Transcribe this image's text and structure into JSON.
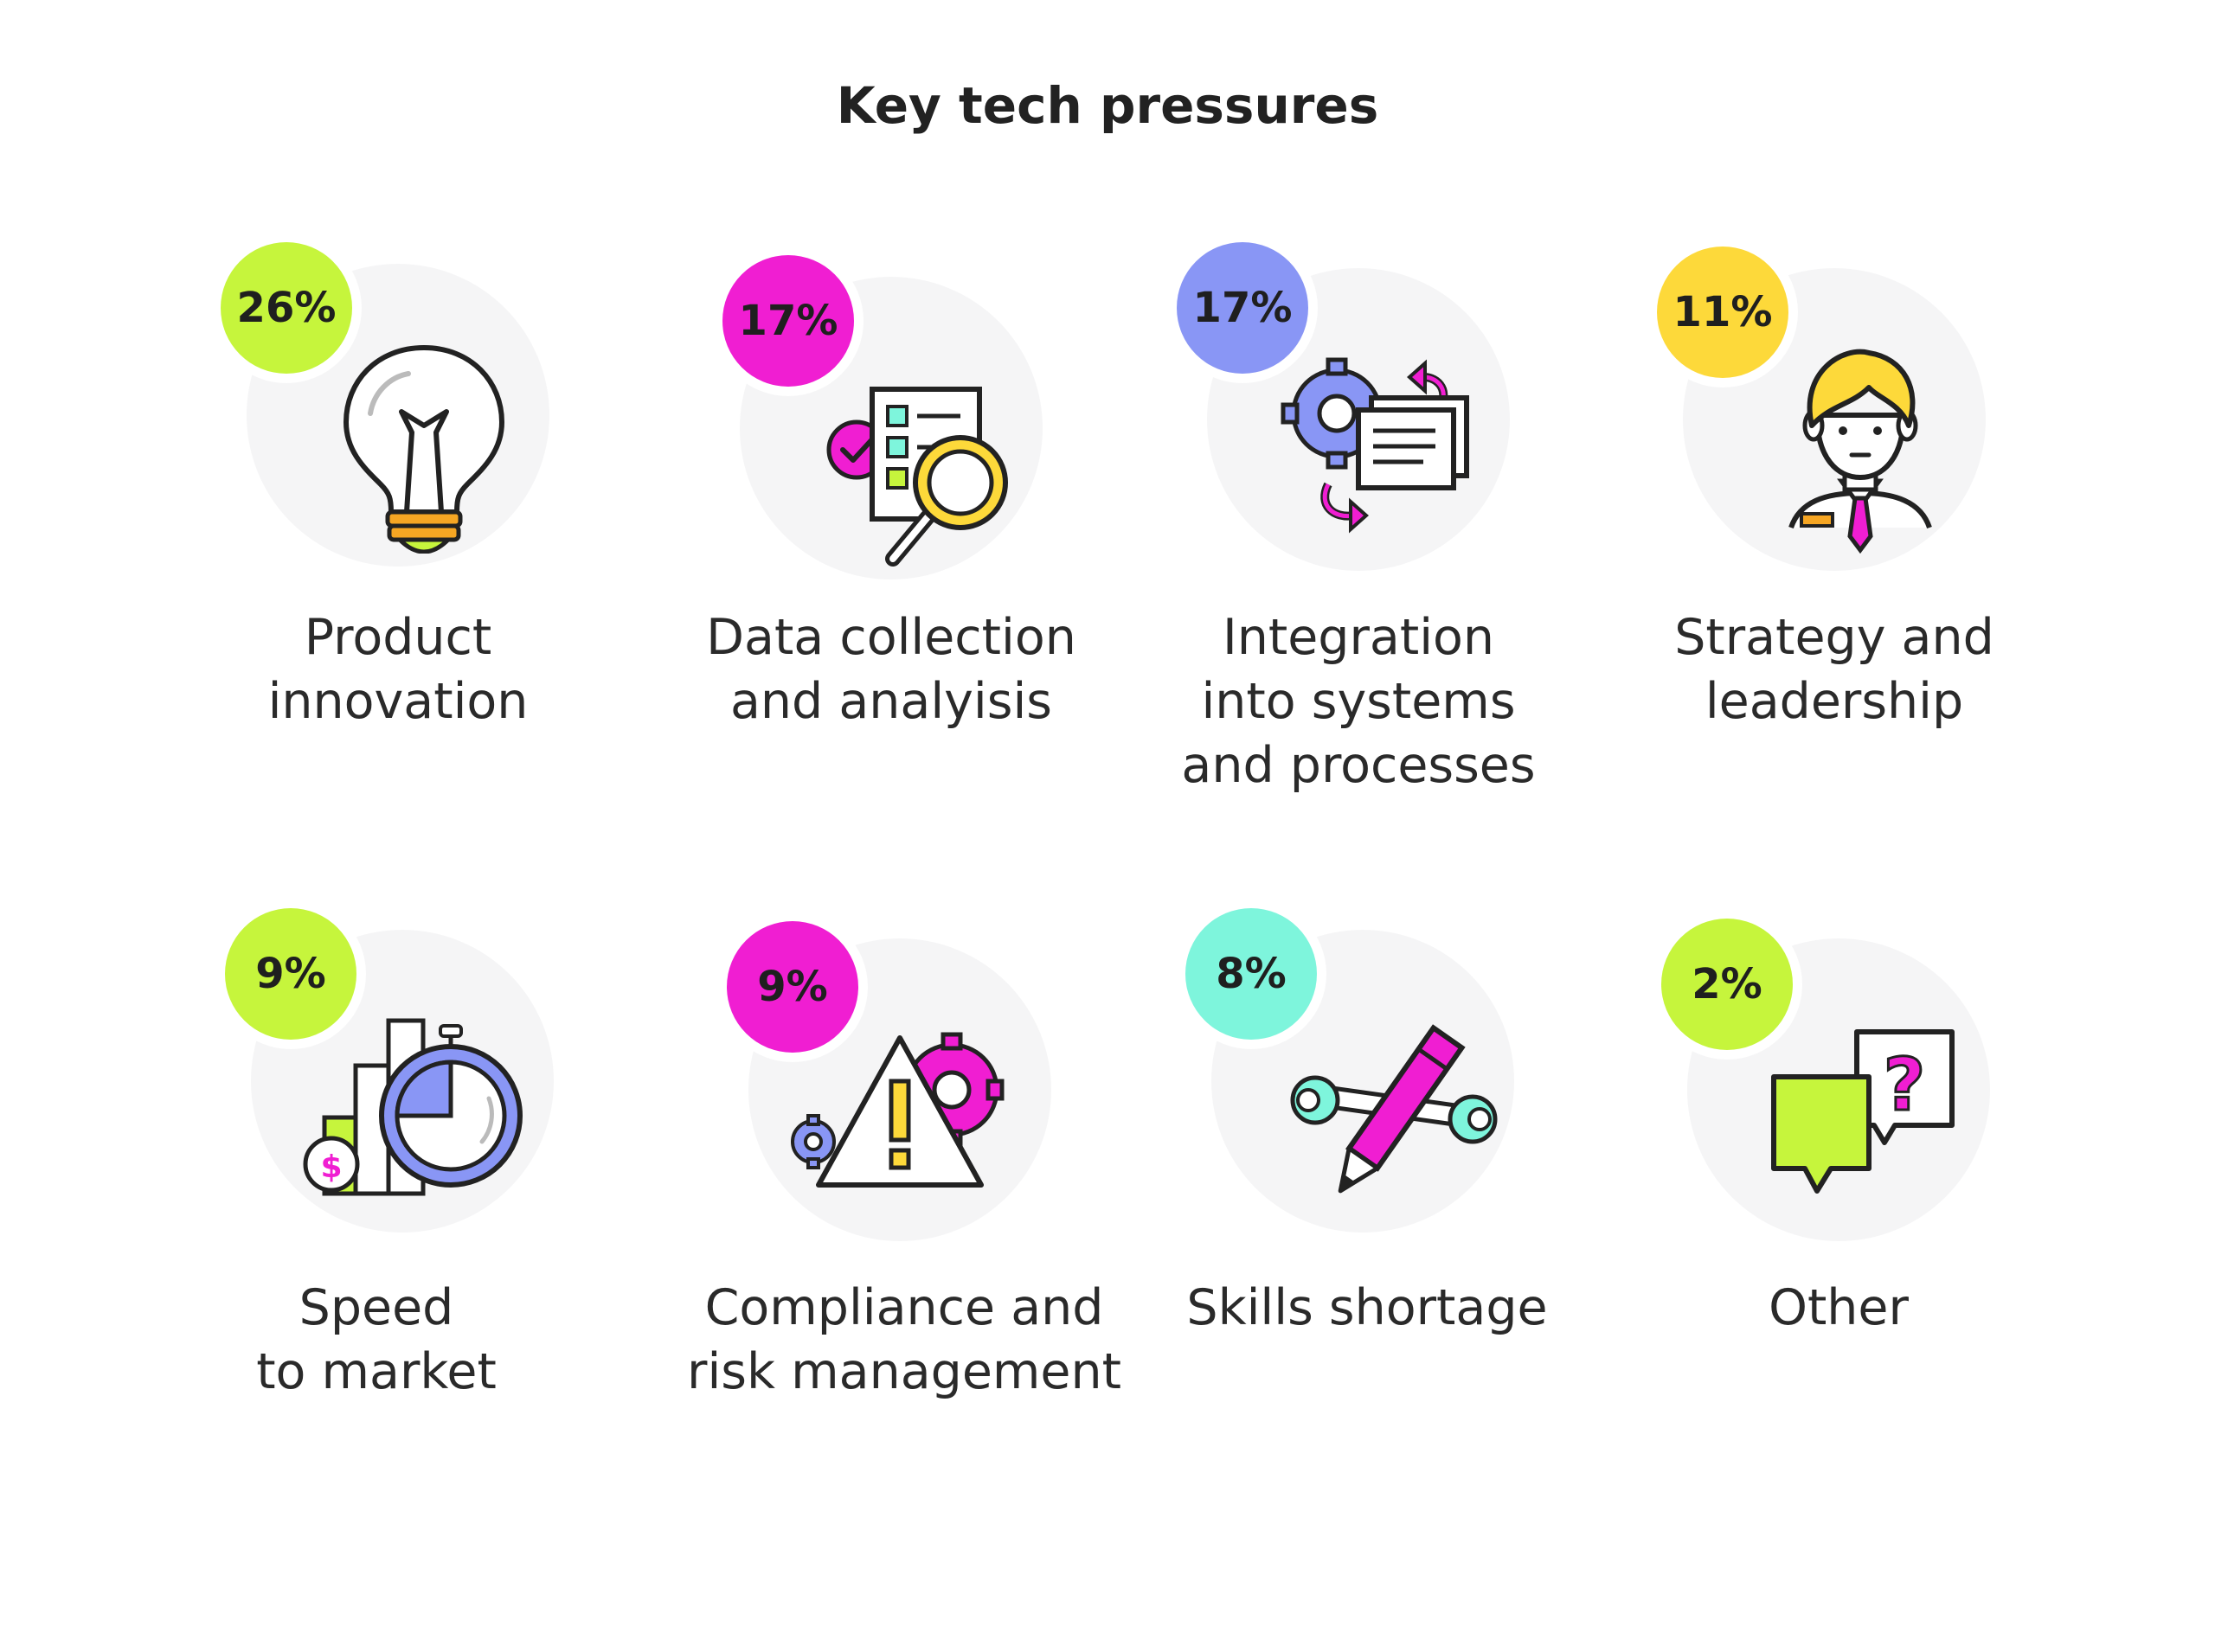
{
  "title": "Key tech pressures",
  "colors": {
    "lime": "#c6f53c",
    "magenta": "#f01ed2",
    "periwinkle": "#8996f5",
    "yellow": "#fdd93a",
    "mint": "#7ef5dc",
    "halo": "#f5f5f6"
  },
  "items": [
    {
      "pct": "26%",
      "label": [
        "Product",
        "innovation"
      ],
      "icon": "lightbulb-icon",
      "badge_color": "#c6f53c"
    },
    {
      "pct": "17%",
      "label": [
        "Data collection",
        "and analyisis"
      ],
      "icon": "checklist-magnifier-icon",
      "badge_color": "#f01ed2"
    },
    {
      "pct": "17%",
      "label": [
        "Integration",
        "into systems",
        "and processes"
      ],
      "icon": "gears-documents-icon",
      "badge_color": "#8996f5"
    },
    {
      "pct": "11%",
      "label": [
        "Strategy and",
        "leadership"
      ],
      "icon": "businessman-icon",
      "badge_color": "#fdd93a"
    },
    {
      "pct": "9%",
      "label": [
        "Speed",
        "to market"
      ],
      "icon": "stopwatch-chart-icon",
      "badge_color": "#c6f53c"
    },
    {
      "pct": "9%",
      "label": [
        "Compliance and",
        "risk management"
      ],
      "icon": "warning-gears-icon",
      "badge_color": "#f01ed2"
    },
    {
      "pct": "8%",
      "label": [
        "Skills shortage"
      ],
      "icon": "pencil-wrench-icon",
      "badge_color": "#7ef5dc"
    },
    {
      "pct": "2%",
      "label": [
        "Other"
      ],
      "icon": "speech-bubbles-icon",
      "badge_color": "#c6f53c"
    }
  ]
}
